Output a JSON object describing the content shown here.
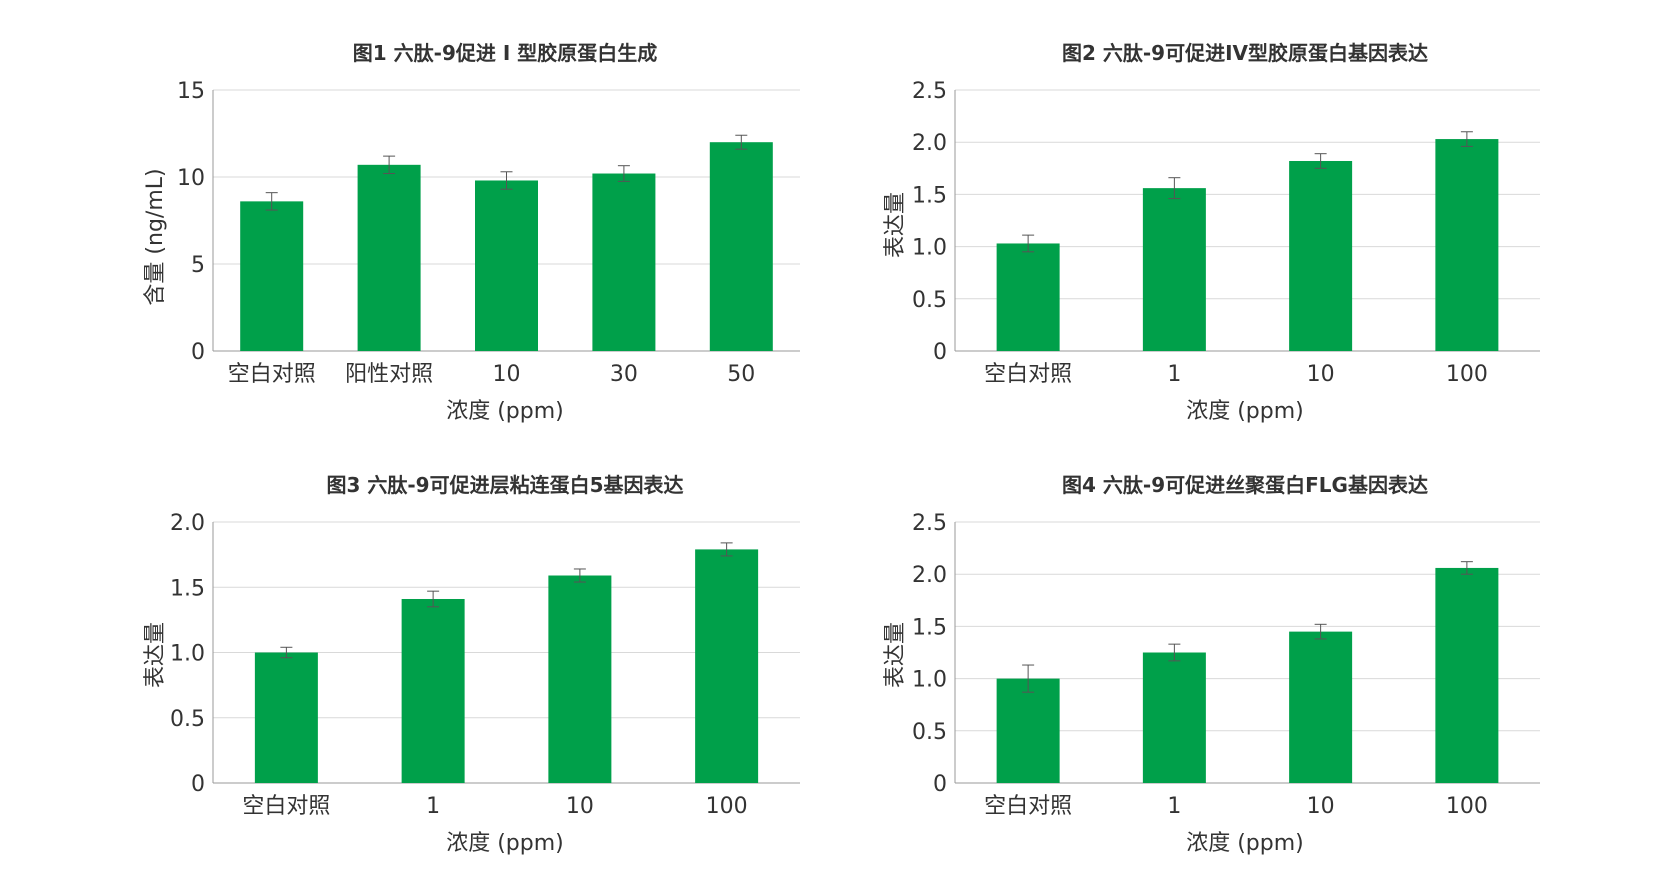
{
  "chart_data": [
    {
      "type": "bar",
      "title": "图1 六肽-9促进 I 型胶原蛋白生成",
      "xlabel": "浓度 (ppm)",
      "ylabel": "含量 (ng/mL)",
      "categories": [
        "空白对照",
        "阳性对照",
        "10",
        "30",
        "50"
      ],
      "values": [
        8.6,
        10.7,
        9.8,
        10.2,
        12.0
      ],
      "errors": [
        0.5,
        0.5,
        0.5,
        0.45,
        0.4
      ],
      "ylim": [
        0,
        15
      ],
      "yticks": [
        0,
        5,
        10,
        15
      ],
      "ytick_labels": [
        "0",
        "5",
        "10",
        "15"
      ],
      "grid": true,
      "bar_color": "#00a04a"
    },
    {
      "type": "bar",
      "title": "图2 六肽-9可促进IV型胶原蛋白基因表达",
      "xlabel": "浓度 (ppm)",
      "ylabel": "表达量",
      "categories": [
        "空白对照",
        "1",
        "10",
        "100"
      ],
      "values": [
        1.03,
        1.56,
        1.82,
        2.03
      ],
      "errors": [
        0.08,
        0.1,
        0.07,
        0.07
      ],
      "ylim": [
        0,
        2.5
      ],
      "yticks": [
        0,
        0.5,
        1.0,
        1.5,
        2.0,
        2.5
      ],
      "ytick_labels": [
        "0",
        "0.5",
        "1.0",
        "1.5",
        "2.0",
        "2.5"
      ],
      "grid": true,
      "bar_color": "#00a04a"
    },
    {
      "type": "bar",
      "title": "图3 六肽-9可促进层粘连蛋白5基因表达",
      "xlabel": "浓度 (ppm)",
      "ylabel": "表达量",
      "categories": [
        "空白对照",
        "1",
        "10",
        "100"
      ],
      "values": [
        1.0,
        1.41,
        1.59,
        1.79
      ],
      "errors": [
        0.04,
        0.06,
        0.05,
        0.05
      ],
      "ylim": [
        0,
        2.0
      ],
      "yticks": [
        0,
        0.5,
        1.0,
        1.5,
        2.0
      ],
      "ytick_labels": [
        "0",
        "0.5",
        "1.0",
        "1.5",
        "2.0"
      ],
      "grid": true,
      "bar_color": "#00a04a"
    },
    {
      "type": "bar",
      "title": "图4 六肽-9可促进丝聚蛋白FLG基因表达",
      "xlabel": "浓度 (ppm)",
      "ylabel": "表达量",
      "categories": [
        "空白对照",
        "1",
        "10",
        "100"
      ],
      "values": [
        1.0,
        1.25,
        1.45,
        2.06
      ],
      "errors": [
        0.13,
        0.08,
        0.07,
        0.06
      ],
      "ylim": [
        0,
        2.5
      ],
      "yticks": [
        0,
        0.5,
        1.0,
        1.5,
        2.0,
        2.5
      ],
      "ytick_labels": [
        "0",
        "0.5",
        "1.0",
        "1.5",
        "2.0",
        "2.5"
      ],
      "grid": true,
      "bar_color": "#00a04a"
    }
  ]
}
